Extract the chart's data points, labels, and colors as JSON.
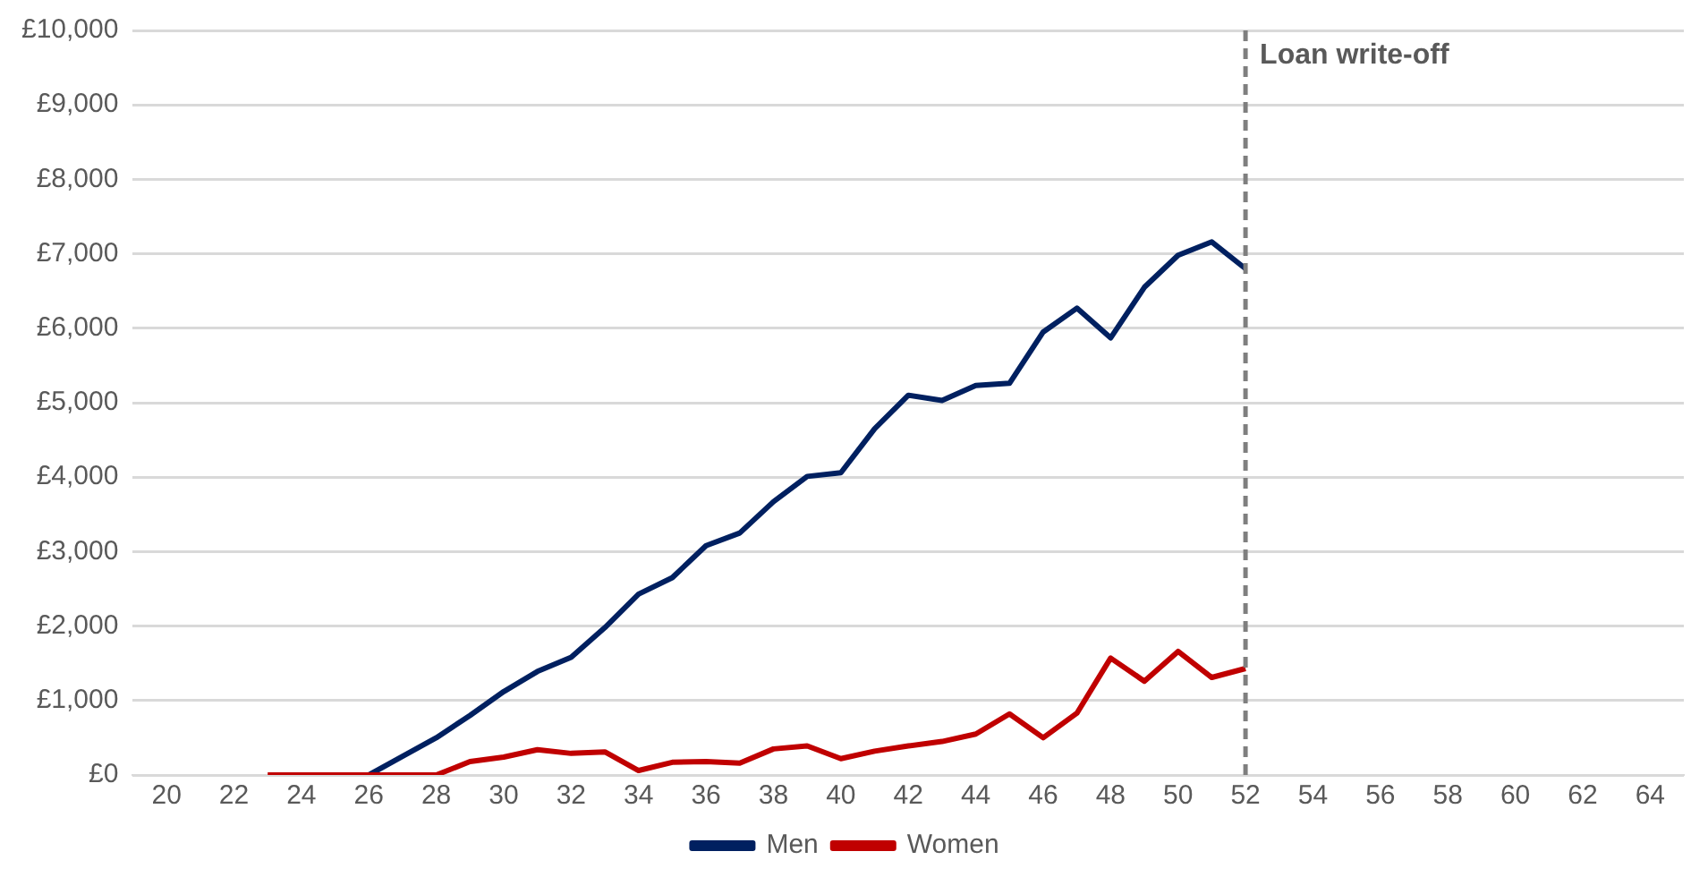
{
  "chart_data": {
    "type": "line",
    "x": [
      23,
      24,
      25,
      26,
      27,
      28,
      29,
      30,
      31,
      32,
      33,
      34,
      35,
      36,
      37,
      38,
      39,
      40,
      41,
      42,
      43,
      44,
      45,
      46,
      47,
      48,
      49,
      50,
      51,
      52
    ],
    "series": [
      {
        "name": "Men",
        "color": "#002060",
        "values": [
          null,
          null,
          null,
          0,
          250,
          500,
          800,
          1120,
          1390,
          1580,
          1980,
          2430,
          2650,
          3080,
          3250,
          3670,
          4010,
          4060,
          4650,
          5100,
          5030,
          5230,
          5260,
          5950,
          6270,
          5870,
          6550,
          6980,
          7160,
          6800
        ]
      },
      {
        "name": "Women",
        "color": "#c00000",
        "values": [
          0,
          0,
          0,
          0,
          0,
          0,
          180,
          240,
          340,
          290,
          310,
          60,
          170,
          180,
          160,
          350,
          390,
          220,
          320,
          390,
          450,
          550,
          820,
          500,
          830,
          1570,
          1260,
          1660,
          1310,
          1430
        ]
      }
    ],
    "xlim": [
      19,
      65
    ],
    "xticks": [
      20,
      22,
      24,
      26,
      28,
      30,
      32,
      34,
      36,
      38,
      40,
      42,
      44,
      46,
      48,
      50,
      52,
      54,
      56,
      58,
      60,
      62,
      64
    ],
    "ylim": [
      0,
      10000
    ],
    "yticks": [
      {
        "value": 0,
        "label": "£0"
      },
      {
        "value": 1000,
        "label": "£1,000"
      },
      {
        "value": 2000,
        "label": "£2,000"
      },
      {
        "value": 3000,
        "label": "£3,000"
      },
      {
        "value": 4000,
        "label": "£4,000"
      },
      {
        "value": 5000,
        "label": "£5,000"
      },
      {
        "value": 6000,
        "label": "£6,000"
      },
      {
        "value": 7000,
        "label": "£7,000"
      },
      {
        "value": 8000,
        "label": "£8,000"
      },
      {
        "value": 9000,
        "label": "£9,000"
      },
      {
        "value": 10000,
        "label": "£10,000"
      }
    ],
    "ref_lines": [
      {
        "axis": "x",
        "value": 52,
        "label": "Loan write-off",
        "color": "#7f7f7f",
        "line_style": "dashed"
      }
    ],
    "grid": "y",
    "legend": "bottom",
    "marker": "none",
    "line_style": "solid"
  }
}
